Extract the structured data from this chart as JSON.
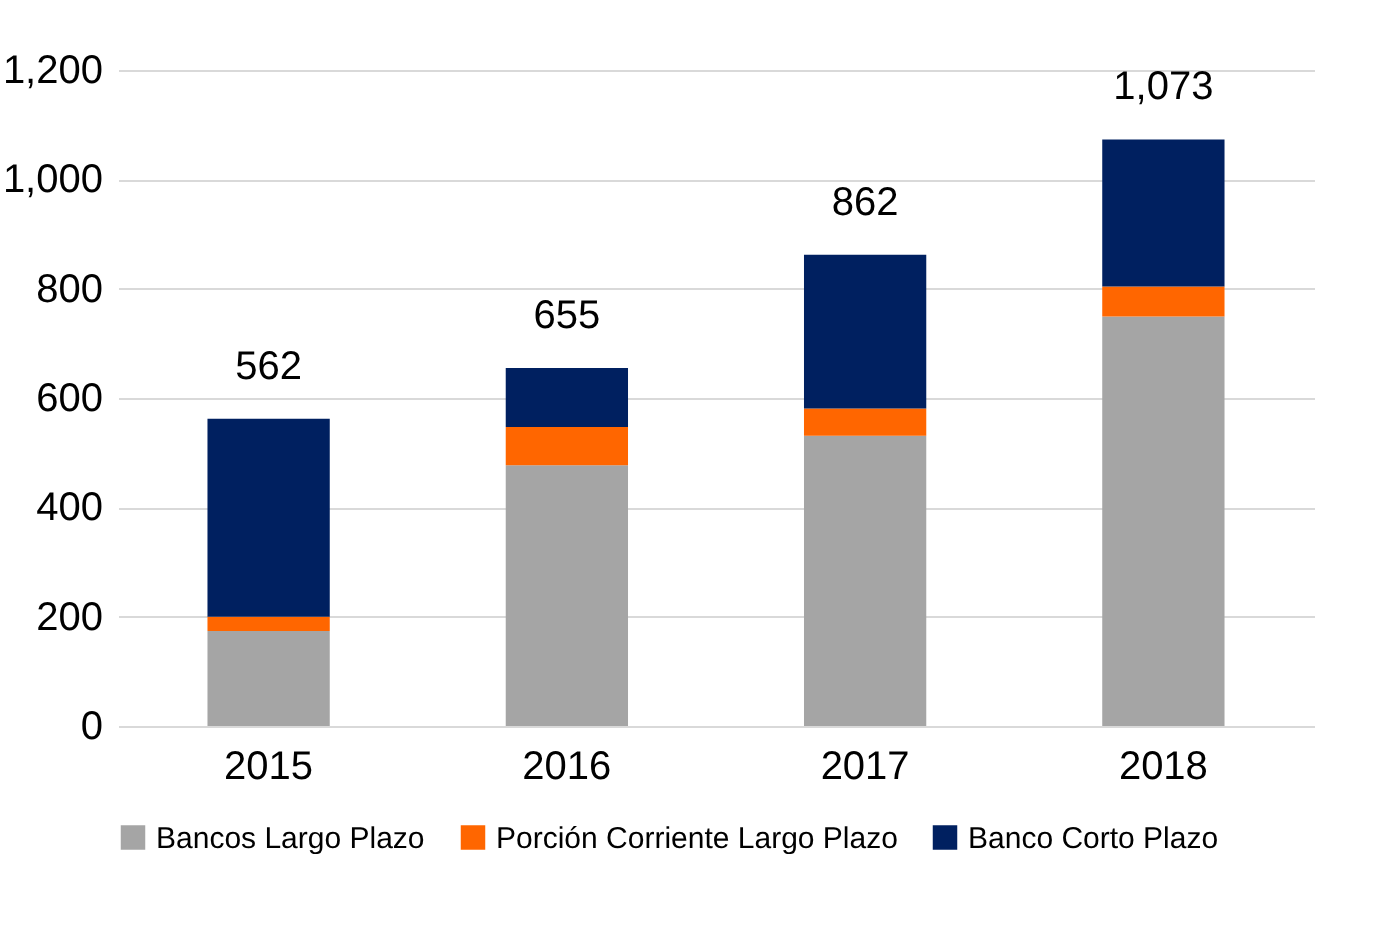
{
  "chart_data": {
    "type": "bar",
    "stacked": true,
    "categories": [
      "2015",
      "2016",
      "2017",
      "2018"
    ],
    "series": [
      {
        "name": "Bancos Largo Plazo",
        "color": "#a5a5a5",
        "values": [
          174,
          477,
          531,
          749
        ]
      },
      {
        "name": "Porción Corriente Largo Plazo",
        "color": "#ff6600",
        "values": [
          26,
          70,
          50,
          55
        ]
      },
      {
        "name": "Banco Corto Plazo",
        "color": "#002060",
        "values": [
          362,
          108,
          281,
          269
        ]
      }
    ],
    "totals": [
      "562",
      "655",
      "862",
      "1,073"
    ],
    "ylim": [
      0,
      1200
    ],
    "yticks": [
      {
        "value": 0,
        "label": "0"
      },
      {
        "value": 200,
        "label": "200"
      },
      {
        "value": 400,
        "label": "400"
      },
      {
        "value": 600,
        "label": "600"
      },
      {
        "value": 800,
        "label": "800"
      },
      {
        "value": 1000,
        "label": "1,000"
      },
      {
        "value": 1200,
        "label": "1,200"
      }
    ],
    "grid": "y",
    "legend": "bottom"
  }
}
